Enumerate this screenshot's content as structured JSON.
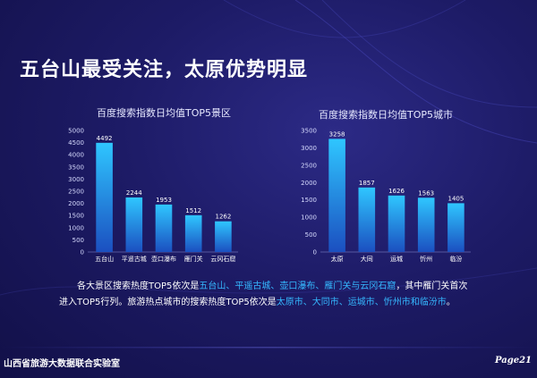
{
  "slide": {
    "title": "五台山最受关注，太原优势明显",
    "footer_org": "山西省旅游大数据联合实验室",
    "page_label": "Page21"
  },
  "summary": {
    "s1_lead": "各大景区搜索热度TOP5依次是",
    "s1_items": "五台山、平遥古城、壶口瀑布、雁门关与云冈石窟",
    "s1_tail": "，其中雁门关首次进入TOP5行列。",
    "s2_lead": "旅游热点城市的搜索热度TOP5依次是",
    "s2_items": "太原市、大同市、运城市、忻州市和临汾市",
    "s2_tail": "。"
  },
  "colors": {
    "highlight": "#35b8ff",
    "bar_top": "#2fc6ff",
    "bar_bottom": "#1b4fc0"
  },
  "chart_data": [
    {
      "type": "bar",
      "title": "百度搜索指数日均值TOP5景区",
      "categories": [
        "五台山",
        "平遥古城",
        "壶口瀑布",
        "雁门关",
        "云冈石窟"
      ],
      "values": [
        4492,
        2244,
        1953,
        1512,
        1262
      ],
      "ylim": [
        0,
        5000
      ],
      "yticks": [
        0,
        500,
        1000,
        1500,
        2000,
        2500,
        3000,
        3500,
        4000,
        4500,
        5000
      ],
      "grid": false,
      "data_labels": true
    },
    {
      "type": "bar",
      "title": "百度搜索指数日均值TOP5城市",
      "categories": [
        "太原",
        "大同",
        "运城",
        "忻州",
        "临汾"
      ],
      "values": [
        3258,
        1857,
        1626,
        1563,
        1405
      ],
      "ylim": [
        0,
        3500
      ],
      "yticks": [
        0,
        500,
        1000,
        1500,
        2000,
        2500,
        3000,
        3500
      ],
      "grid": false,
      "data_labels": true
    }
  ]
}
